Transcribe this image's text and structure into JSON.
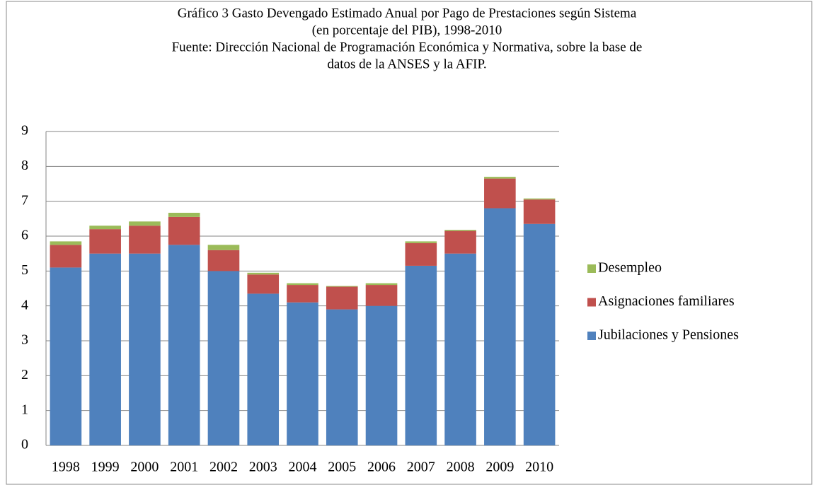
{
  "chart_data": {
    "type": "stacked_bar",
    "title": [
      "Gráfico 3 Gasto Devengado Estimado Anual por Pago de Prestaciones según Sistema",
      "(en porcentaje del PIB), 1998-2010",
      "Fuente: Dirección Nacional de Programación Económica y Normativa, sobre la base de",
      "datos de la ANSES y  la AFIP."
    ],
    "categories": [
      "1998",
      "1999",
      "2000",
      "2001",
      "2002",
      "2003",
      "2004",
      "2005",
      "2006",
      "2007",
      "2008",
      "2009",
      "2010"
    ],
    "series": [
      {
        "name": "Jubilaciones y Pensiones",
        "color": "#4f81bd",
        "values": [
          5.1,
          5.5,
          5.5,
          5.75,
          5.0,
          4.35,
          4.1,
          3.9,
          4.0,
          5.15,
          5.5,
          6.8,
          6.35
        ]
      },
      {
        "name": "Asignaciones familiares",
        "color": "#c0504d",
        "values": [
          0.65,
          0.7,
          0.8,
          0.8,
          0.6,
          0.55,
          0.5,
          0.65,
          0.6,
          0.65,
          0.65,
          0.85,
          0.7
        ]
      },
      {
        "name": "Desempleo",
        "color": "#9bbb59",
        "values": [
          0.1,
          0.1,
          0.12,
          0.12,
          0.15,
          0.05,
          0.05,
          0.02,
          0.05,
          0.05,
          0.03,
          0.05,
          0.03
        ]
      }
    ],
    "ylim": [
      0,
      9
    ],
    "yticks": [
      0,
      1,
      2,
      3,
      4,
      5,
      6,
      7,
      8,
      9
    ],
    "grid": true,
    "legend": "right"
  }
}
